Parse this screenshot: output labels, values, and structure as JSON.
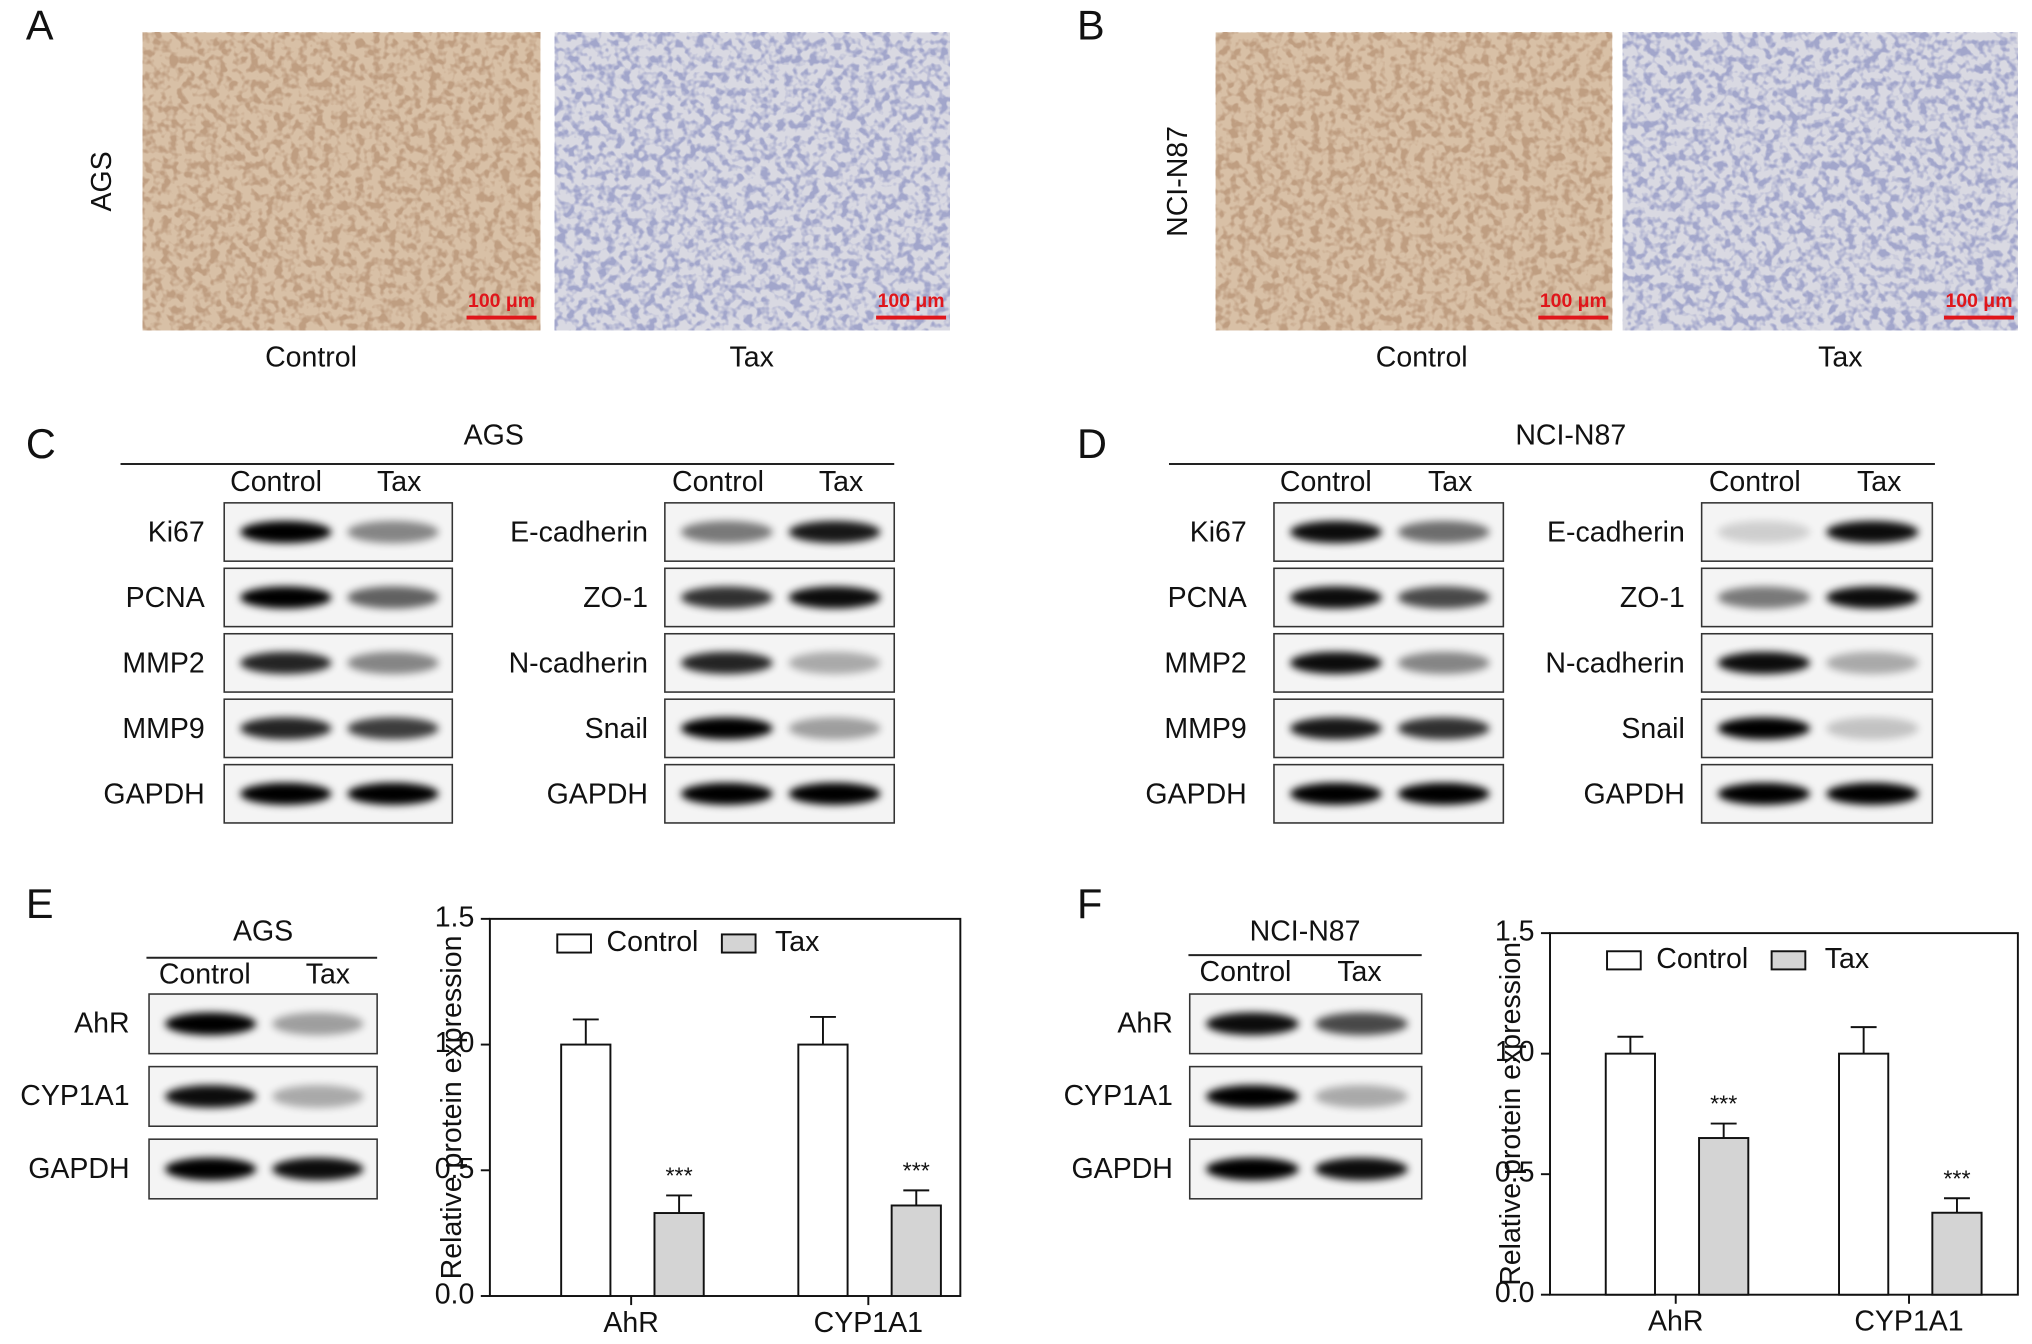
{
  "panels": {
    "A": {
      "label": "A",
      "cell_line": "AGS",
      "groups": [
        "Control",
        "Tax"
      ],
      "scale_bar": "100 μm"
    },
    "B": {
      "label": "B",
      "cell_line": "NCI-N87",
      "groups": [
        "Control",
        "Tax"
      ],
      "scale_bar": "100 μm"
    },
    "C": {
      "label": "C",
      "cell_line": "AGS",
      "groups": [
        "Control",
        "Tax"
      ],
      "left_blots": [
        "Ki67",
        "PCNA",
        "MMP2",
        "MMP9",
        "GAPDH"
      ],
      "right_blots": [
        "E-cadherin",
        "ZO-1",
        "N-cadherin",
        "Snail",
        "GAPDH"
      ]
    },
    "D": {
      "label": "D",
      "cell_line": "NCI-N87",
      "groups": [
        "Control",
        "Tax"
      ],
      "left_blots": [
        "Ki67",
        "PCNA",
        "MMP2",
        "MMP9",
        "GAPDH"
      ],
      "right_blots": [
        "E-cadherin",
        "ZO-1",
        "N-cadherin",
        "Snail",
        "GAPDH"
      ]
    },
    "E": {
      "label": "E",
      "cell_line": "AGS",
      "groups": [
        "Control",
        "Tax"
      ],
      "blots": [
        "AhR",
        "CYP1A1",
        "GAPDH"
      ]
    },
    "F": {
      "label": "F",
      "cell_line": "NCI-N87",
      "groups": [
        "Control",
        "Tax"
      ],
      "blots": [
        "AhR",
        "CYP1A1",
        "GAPDH"
      ]
    }
  },
  "chart_data": [
    {
      "type": "bar",
      "y_label": "Relative protein expression",
      "categories": [
        "AhR",
        "CYP1A1"
      ],
      "series": [
        {
          "name": "Control",
          "color": "#ffffff",
          "values": [
            1.0,
            1.0
          ],
          "errors": [
            0.1,
            0.11
          ]
        },
        {
          "name": "Tax",
          "color": "#d4d4d4",
          "values": [
            0.33,
            0.36
          ],
          "errors": [
            0.07,
            0.06
          ],
          "annotations": [
            "***",
            "***"
          ]
        }
      ],
      "ylim": [
        0,
        1.5
      ],
      "yticks": [
        {
          "value": 0,
          "label": "0.0"
        },
        {
          "value": 0.5,
          "label": "0.5"
        },
        {
          "value": 1,
          "label": "1.0"
        },
        {
          "value": 1.5,
          "label": "1.5"
        }
      ]
    },
    {
      "type": "bar",
      "y_label": "Relative protein expression",
      "categories": [
        "AhR",
        "CYP1A1"
      ],
      "series": [
        {
          "name": "Control",
          "color": "#ffffff",
          "values": [
            1.0,
            1.0
          ],
          "errors": [
            0.07,
            0.11
          ]
        },
        {
          "name": "Tax",
          "color": "#d4d4d4",
          "values": [
            0.65,
            0.34
          ],
          "errors": [
            0.06,
            0.06
          ],
          "annotations": [
            "***",
            "***"
          ]
        }
      ],
      "ylim": [
        0,
        1.5
      ],
      "yticks": [
        {
          "value": 0,
          "label": "0.0"
        },
        {
          "value": 0.5,
          "label": "0.5"
        },
        {
          "value": 1,
          "label": "1.0"
        },
        {
          "value": 1.5,
          "label": "1.5"
        }
      ]
    }
  ]
}
